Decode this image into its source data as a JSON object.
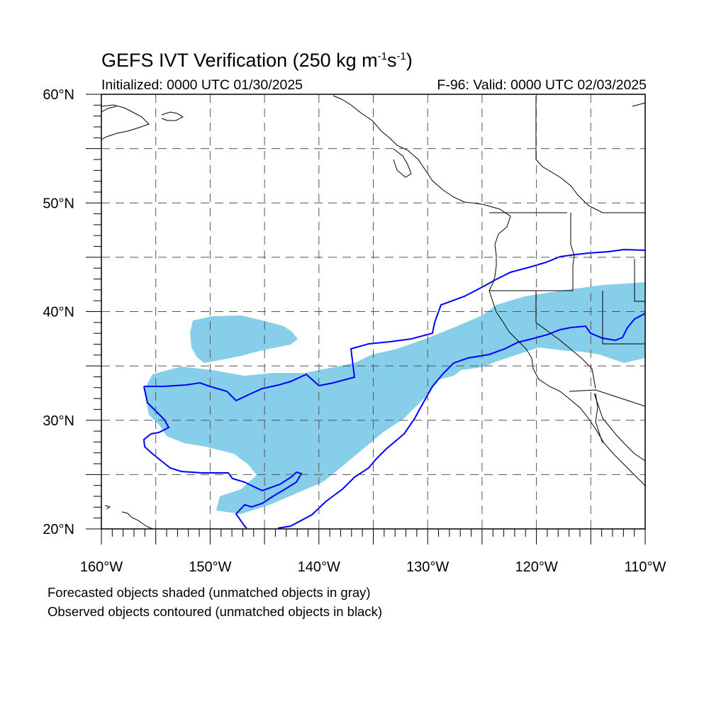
{
  "title": {
    "main": "GEFS IVT Verification (250 kg m",
    "exp1": "-1",
    "mid": "s",
    "exp2": "-1",
    "end": ")"
  },
  "initialized": "Initialized: 0000 UTC 01/30/2025",
  "valid": "F-96: Valid: 0000 UTC 02/03/2025",
  "notes": {
    "line1": "Forecasted objects shaded (unmatched objects in gray)",
    "line2": "Observed objects contoured (unmatched objects in black)"
  },
  "map": {
    "lon_range": [
      -160,
      -110
    ],
    "lat_range": [
      20,
      60
    ],
    "lat_labels": [
      "60°N",
      "50°N",
      "40°N",
      "30°N",
      "20°N"
    ],
    "lon_labels": [
      "160°W",
      "150°W",
      "140°W",
      "130°W",
      "120°W",
      "110°W"
    ],
    "forecast_color": "#87ceeb",
    "observed_color": "#0000ff",
    "coast_color": "#000000",
    "grid_color": "#555555"
  }
}
